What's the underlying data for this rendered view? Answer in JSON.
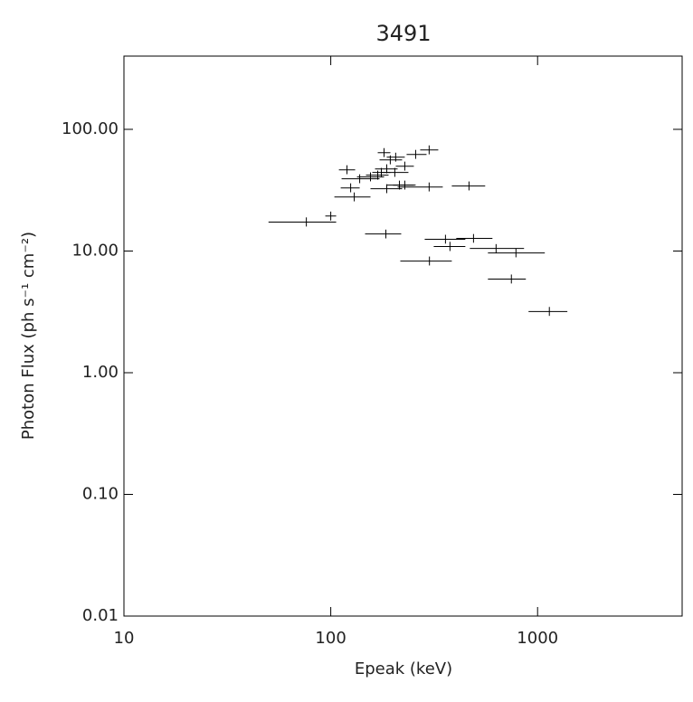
{
  "chart_data": {
    "type": "scatter",
    "title": "3491",
    "x_label": "Epeak (keV)",
    "y_label": "Photon Flux (ph s⁻¹ cm⁻²)",
    "x_log": true,
    "y_log": true,
    "xlim": [
      10,
      5000
    ],
    "ylim": [
      0.01,
      400
    ],
    "xticks": [
      10,
      100,
      1000
    ],
    "yticks": [
      {
        "value": 0.01,
        "label": "0.01"
      },
      {
        "value": 0.1,
        "label": "0.10"
      },
      {
        "value": 1,
        "label": "1.00"
      },
      {
        "value": 10,
        "label": "10.00"
      },
      {
        "value": 100,
        "label": "100.00"
      }
    ],
    "color": "#000000",
    "x": [
      76.2,
      100,
      119.8,
      124.8,
      129.9,
      138,
      155.6,
      168.7,
      175.6,
      181,
      186.5,
      186.5,
      194,
      184.7,
      204,
      206,
      214.7,
      228,
      228,
      257.3,
      299,
      299,
      300,
      358.6,
      377,
      466,
      490,
      630,
      747,
      786,
      1140
    ],
    "x_low": [
      50.0,
      94.1,
      109.5,
      111.7,
      104.1,
      112.8,
      133.9,
      148,
      158.8,
      168.7,
      163.7,
      155.6,
      172.1,
      146.5,
      175.6,
      186.5,
      186.5,
      206.3,
      200.1,
      232.7,
      270.6,
      210.5,
      216.9,
      284.6,
      314.7,
      384.8,
      404.6,
      470.4,
      575.3,
      575.3,
      904.3
    ],
    "x_high": [
      106.2,
      106.2,
      131.2,
      138,
      155.6,
      172.1,
      181,
      190.3,
      194.2,
      194.2,
      210.5,
      221.3,
      221.3,
      219.1,
      237.4,
      228,
      252.2,
      252.2,
      257.3,
      290.4,
      331,
      348,
      384.8,
      447.4,
      447.4,
      558,
      604.9,
      860,
      877.5,
      1083.6,
      1393
    ],
    "y": [
      17.3,
      19.4,
      46.5,
      33.0,
      27.8,
      39.2,
      40.6,
      42.0,
      44.2,
      64.3,
      47.3,
      32.5,
      56.1,
      13.8,
      44.2,
      59.0,
      34.8,
      49.8,
      34.8,
      62.2,
      67.7,
      33.6,
      8.27,
      12.5,
      10.9,
      34.2,
      12.7,
      10.5,
      5.88,
      9.65,
      3.18
    ],
    "y_low": [
      15.9,
      17.8,
      42.8,
      30.4,
      25.6,
      36.1,
      37.4,
      38.6,
      40.7,
      59.2,
      43.5,
      29.9,
      51.6,
      12.7,
      40.7,
      54.3,
      32.0,
      45.8,
      32.0,
      57.2,
      62.3,
      30.9,
      7.61,
      11.5,
      10.0,
      31.5,
      11.7,
      9.66,
      5.41,
      8.88,
      2.93
    ],
    "y_high": [
      18.9,
      21.1,
      50.7,
      36.0,
      30.3,
      42.7,
      44.3,
      45.8,
      48.2,
      70.1,
      51.6,
      35.4,
      61.1,
      15.0,
      48.2,
      64.3,
      37.9,
      54.3,
      37.9,
      67.8,
      73.8,
      36.6,
      9.01,
      13.6,
      11.9,
      37.3,
      13.8,
      11.4,
      6.41,
      10.5,
      3.47
    ]
  }
}
